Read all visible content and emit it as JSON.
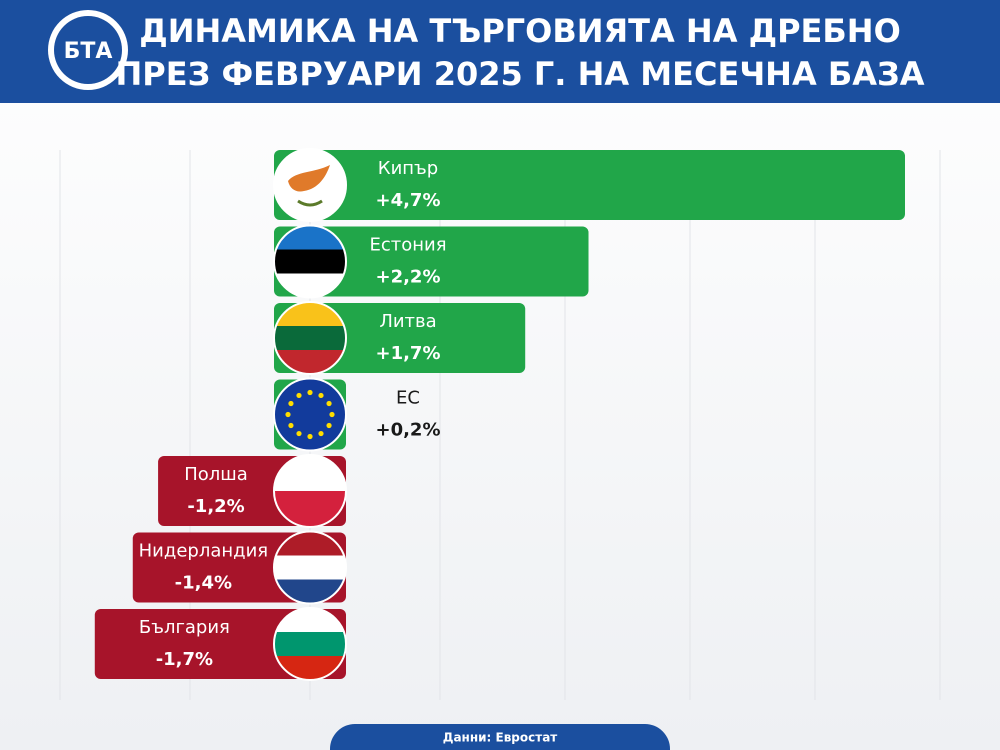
{
  "logo": "БТА",
  "chart_data": {
    "type": "hbar",
    "title_lines": [
      "ДИНАМИКА НА ТЪРГОВИЯТА НА ДРЕБНО",
      "ПРЕЗ ФЕВРУАРИ 2025 Г. НА МЕСЕЧНА БАЗА"
    ],
    "categories": [
      "Кипър",
      "Естония",
      "Литва",
      "ЕС",
      "Полша",
      "Нидерландия",
      "България"
    ],
    "values": [
      4.7,
      2.2,
      1.7,
      0.2,
      -1.2,
      -1.4,
      -1.7
    ],
    "value_labels": [
      "+4,7%",
      "+2,2%",
      "+1,7%",
      "+0,2%",
      "-1,2%",
      "-1,4%",
      "-1,7%"
    ],
    "colors": {
      "positive": "#21a649",
      "negative": "#a7142a"
    },
    "source": "Данни: Евростат"
  }
}
